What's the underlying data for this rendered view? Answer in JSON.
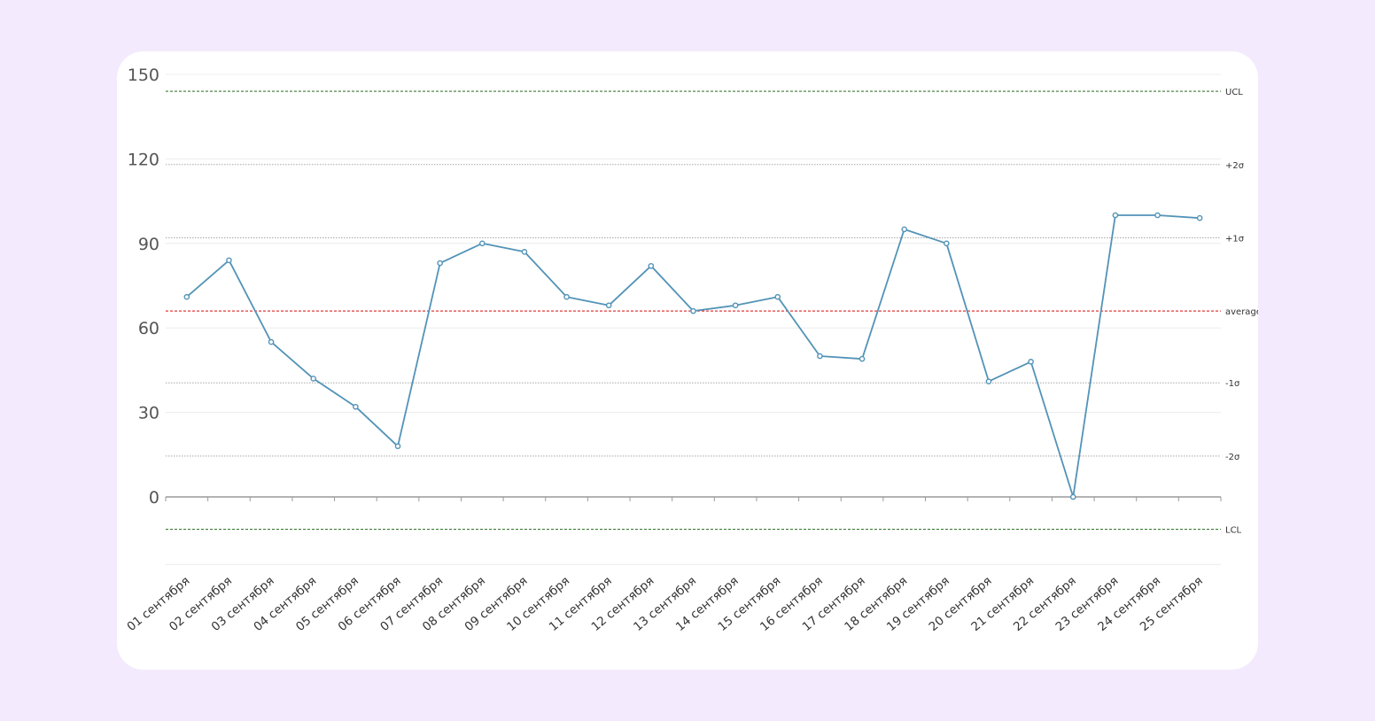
{
  "colors": {
    "page_background": "#f3eafd",
    "card_background": "#ffffff",
    "series_line": "#5393b7",
    "average_line": "#e03a3a",
    "control_limit_line": "#3c7a34",
    "sigma_line": "#a8a8a8",
    "gridline": "#ececec",
    "axis": "#9a9a9a"
  },
  "chart_data": {
    "type": "line",
    "title": "",
    "xlabel": "",
    "ylabel": "",
    "ylim": [
      -27,
      150
    ],
    "yticks": [
      0,
      30,
      60,
      90,
      120,
      150
    ],
    "grid": true,
    "categories": [
      "01 сентября",
      "02 сентября",
      "03 сентября",
      "04 сентября",
      "05 сентября",
      "06 сентября",
      "07 сентября",
      "08 сентября",
      "09 сентября",
      "10 сентября",
      "11 сентября",
      "12 сентября",
      "13 сентября",
      "14 сентября",
      "15 сентября",
      "16 сентября",
      "17 сентября",
      "18 сентября",
      "19 сентября",
      "20 сентября",
      "21 сентября",
      "22 сентября",
      "23 сентября",
      "24 сентября",
      "25 сентября"
    ],
    "series": [
      {
        "values": [
          71,
          84,
          55,
          42,
          32,
          18,
          83,
          90,
          87,
          71,
          68,
          82,
          66,
          68,
          71,
          50,
          49,
          95,
          90,
          41,
          48,
          0,
          100,
          100,
          99
        ]
      }
    ],
    "reference_lines": [
      {
        "label": "UCL",
        "value": 144,
        "style": "control"
      },
      {
        "label": "+2σ",
        "value": 118,
        "style": "sigma"
      },
      {
        "label": "+1σ",
        "value": 92,
        "style": "sigma"
      },
      {
        "label": "average",
        "value": 66,
        "style": "average"
      },
      {
        "label": "-1σ",
        "value": 40.5,
        "style": "sigma"
      },
      {
        "label": "-2σ",
        "value": 14.5,
        "style": "sigma"
      },
      {
        "label": "LCL",
        "value": -11.5,
        "style": "control"
      }
    ]
  }
}
